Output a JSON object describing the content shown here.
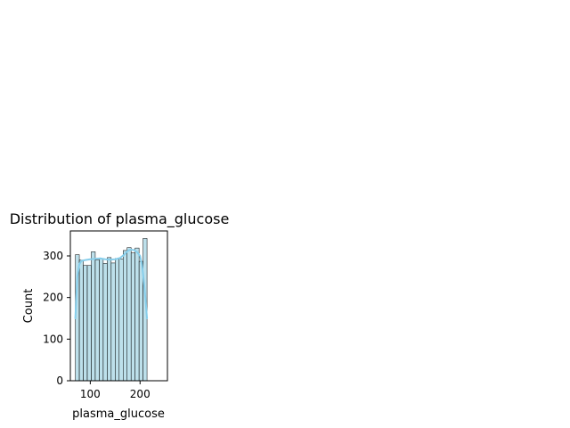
{
  "chart_data": {
    "type": "bar",
    "subtype": "histogram",
    "title": "Distribution of plasma_glucose",
    "xlabel": "plasma_glucose",
    "ylabel": "Count",
    "xlim": [
      60,
      255
    ],
    "ylim": [
      0,
      360
    ],
    "xticks": [
      100,
      200
    ],
    "yticks": [
      0,
      100,
      200,
      300
    ],
    "grid": false,
    "legend": "none",
    "bar_color": "#add8e6",
    "bar_edge_color": "#000000",
    "kde_color": "#87ceeb",
    "bins": [
      {
        "x0": 70,
        "x1": 78,
        "count": 303
      },
      {
        "x0": 78,
        "x1": 86,
        "count": 290
      },
      {
        "x0": 86,
        "x1": 94,
        "count": 277
      },
      {
        "x0": 94,
        "x1": 102,
        "count": 277
      },
      {
        "x0": 102,
        "x1": 110,
        "count": 310
      },
      {
        "x0": 110,
        "x1": 118,
        "count": 290
      },
      {
        "x0": 118,
        "x1": 126,
        "count": 294
      },
      {
        "x0": 126,
        "x1": 134,
        "count": 282
      },
      {
        "x0": 134,
        "x1": 142,
        "count": 296
      },
      {
        "x0": 142,
        "x1": 150,
        "count": 283
      },
      {
        "x0": 150,
        "x1": 158,
        "count": 294
      },
      {
        "x0": 158,
        "x1": 166,
        "count": 293
      },
      {
        "x0": 166,
        "x1": 174,
        "count": 313
      },
      {
        "x0": 174,
        "x1": 182,
        "count": 320
      },
      {
        "x0": 182,
        "x1": 190,
        "count": 307
      },
      {
        "x0": 190,
        "x1": 198,
        "count": 319
      },
      {
        "x0": 198,
        "x1": 206,
        "count": 287
      },
      {
        "x0": 206,
        "x1": 214,
        "count": 342
      }
    ],
    "kde": {
      "x": [
        70,
        74,
        78,
        82,
        90,
        100,
        110,
        120,
        130,
        140,
        150,
        160,
        170,
        176,
        182,
        188,
        194,
        200,
        204,
        208,
        212,
        214
      ],
      "y": [
        150,
        250,
        280,
        288,
        290,
        292,
        293,
        294,
        292,
        291,
        292,
        295,
        305,
        313,
        315,
        314,
        309,
        300,
        278,
        235,
        180,
        150
      ]
    }
  }
}
